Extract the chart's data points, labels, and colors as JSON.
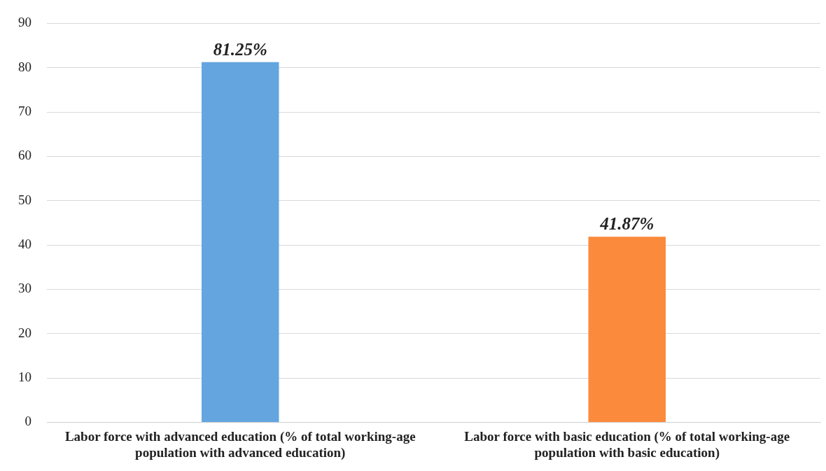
{
  "chart_data": {
    "type": "bar",
    "categories": [
      "Labor force with advanced education (% of total working-age population with advanced education)",
      "Labor force with basic education (% of total working-age population with basic education)"
    ],
    "values": [
      81.25,
      41.87
    ],
    "colors": [
      "#64a5e0",
      "#fb8a3c"
    ],
    "value_labels": [
      "81.25%",
      "41.87%"
    ],
    "ylim": [
      0,
      90
    ],
    "yticks": [
      0,
      10,
      20,
      30,
      40,
      50,
      60,
      70,
      80,
      90
    ],
    "grid": "y",
    "legend": false
  }
}
